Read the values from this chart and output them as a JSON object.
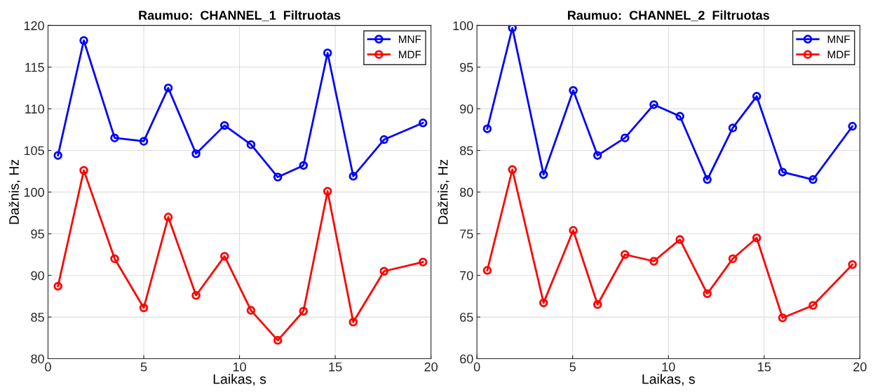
{
  "chart_data": [
    {
      "type": "line",
      "title": "Raumuo:  CHANNEL_1  Filtruotas",
      "xlabel": "Laikas, s",
      "ylabel": "Dažnis, Hz",
      "x": [
        0.52,
        1.87,
        3.48,
        5.0,
        6.28,
        7.73,
        9.22,
        10.6,
        12.0,
        13.34,
        14.6,
        15.94,
        17.55,
        19.58
      ],
      "series": [
        {
          "name": "MNF",
          "color": "#0000ff",
          "values": [
            104.4,
            118.2,
            106.5,
            106.1,
            112.5,
            104.6,
            108.0,
            105.7,
            101.8,
            103.2,
            116.7,
            101.9,
            106.3,
            108.3
          ]
        },
        {
          "name": "MDF",
          "color": "#ff0000",
          "values": [
            88.7,
            102.6,
            92.0,
            86.1,
            97.0,
            87.6,
            92.3,
            85.8,
            82.2,
            85.7,
            100.1,
            84.4,
            90.5,
            91.6
          ]
        }
      ],
      "xlim": [
        0,
        20
      ],
      "xticks": [
        0,
        5,
        10,
        15,
        20
      ],
      "ylim": [
        80,
        120
      ],
      "yticks": [
        80,
        85,
        90,
        95,
        100,
        105,
        110,
        115,
        120
      ],
      "grid": true,
      "legend": "top right",
      "marker": "circle",
      "line_style": "solid"
    },
    {
      "type": "line",
      "title": "Raumuo:  CHANNEL_2  Filtruotas",
      "xlabel": "Laikas, s",
      "ylabel": "Dažnis, Hz",
      "x": [
        0.54,
        1.85,
        3.48,
        5.03,
        6.3,
        7.73,
        9.24,
        10.6,
        12.03,
        13.36,
        14.61,
        15.96,
        17.55,
        19.61
      ],
      "series": [
        {
          "name": "MNF",
          "color": "#0000ff",
          "values": [
            87.6,
            99.7,
            82.1,
            92.2,
            84.4,
            86.5,
            90.5,
            89.1,
            81.5,
            87.7,
            91.5,
            82.4,
            81.5,
            87.9
          ]
        },
        {
          "name": "MDF",
          "color": "#ff0000",
          "values": [
            70.6,
            82.7,
            66.7,
            75.4,
            66.5,
            72.5,
            71.7,
            74.3,
            67.8,
            72.0,
            74.5,
            64.9,
            66.4,
            71.3
          ]
        }
      ],
      "xlim": [
        0,
        20
      ],
      "xticks": [
        0,
        5,
        10,
        15,
        20
      ],
      "ylim": [
        60,
        100
      ],
      "yticks": [
        60,
        65,
        70,
        75,
        80,
        85,
        90,
        95,
        100
      ],
      "grid": true,
      "legend": "top right",
      "marker": "circle",
      "line_style": "solid"
    }
  ]
}
